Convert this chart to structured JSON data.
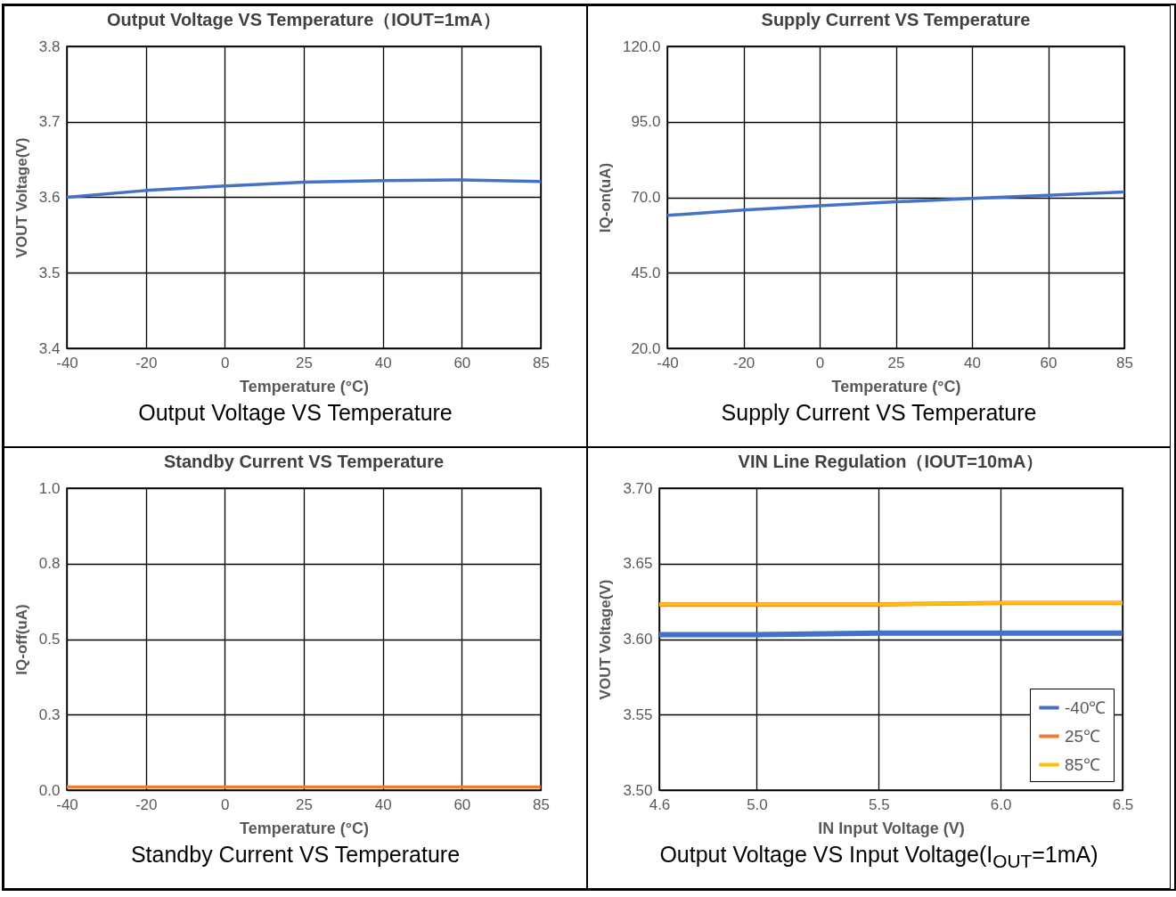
{
  "chart_data": [
    {
      "type": "line",
      "title": "Output Voltage VS Temperature（IOUT=1mA）",
      "xlabel": "Temperature (°C)",
      "ylabel": "VOUT Voltage(V)",
      "categories": [
        "-40",
        "-20",
        "0",
        "25",
        "40",
        "60",
        "85"
      ],
      "series": [
        {
          "color": "#4472c4",
          "values": [
            3.6,
            3.609,
            3.615,
            3.62,
            3.622,
            3.623,
            3.621
          ]
        }
      ],
      "ylim": [
        3.4,
        3.8
      ],
      "yticks": [
        3.4,
        3.5,
        3.6,
        3.7,
        3.8
      ],
      "grid": true,
      "annotations": [
        "Output Voltage VS Temperature"
      ]
    },
    {
      "type": "line",
      "title": "Supply Current VS Temperature",
      "xlabel": "Temperature (°C)",
      "ylabel": "IQ-on(uA)",
      "categories": [
        "-40",
        "-20",
        "0",
        "25",
        "40",
        "60",
        "85"
      ],
      "series": [
        {
          "color": "#4472c4",
          "values": [
            64,
            65.8,
            67.2,
            68.5,
            69.6,
            70.7,
            71.8
          ]
        }
      ],
      "ylim": [
        20,
        120
      ],
      "yticks": [
        {
          "value": 20,
          "label": "20.0"
        },
        {
          "value": 45,
          "label": "45.0"
        },
        {
          "value": 70,
          "label": "70.0"
        },
        {
          "value": 95,
          "label": "95.0"
        },
        {
          "value": 120,
          "label": "120.0"
        }
      ],
      "grid": true,
      "annotations": [
        "Supply Current VS Temperature"
      ]
    },
    {
      "type": "line",
      "title": "Standby Current VS Temperature",
      "xlabel": "Temperature (°C)",
      "ylabel": "IQ-off(uA)",
      "categories": [
        "-40",
        "-20",
        "0",
        "25",
        "40",
        "60",
        "85"
      ],
      "series": [
        {
          "color": "#ed7d31",
          "values": [
            0.01,
            0.01,
            0.01,
            0.01,
            0.01,
            0.01,
            0.01
          ]
        }
      ],
      "ylim": [
        0,
        1
      ],
      "yticks": [
        {
          "value": 0,
          "label": "0.0"
        },
        {
          "value": 0.25,
          "label": "0.3"
        },
        {
          "value": 0.5,
          "label": "0.5"
        },
        {
          "value": 0.75,
          "label": "0.8"
        },
        {
          "value": 1,
          "label": "1.0"
        }
      ],
      "grid": true,
      "annotations": [
        "Standby Current VS Temperature"
      ]
    },
    {
      "type": "line",
      "title": "VIN Line Regulation（IOUT=10mA）",
      "xlabel": "IN Input Voltage (V)",
      "ylabel": "VOUT Voltage(V)",
      "x": [
        4.6,
        5.0,
        5.5,
        6.0,
        6.5
      ],
      "series": [
        {
          "name": "-40℃",
          "color": "#4472c4",
          "values": [
            3.603,
            3.603,
            3.604,
            3.604,
            3.604
          ]
        },
        {
          "name": "25℃",
          "color": "#ed7d31",
          "values": [
            3.623,
            3.623,
            3.623,
            3.624,
            3.624
          ]
        },
        {
          "name": "85℃",
          "color": "#ffc000",
          "values": [
            3.623,
            3.623,
            3.623,
            3.624,
            3.624
          ]
        }
      ],
      "xlim": [
        4.6,
        6.5
      ],
      "xticks": [
        4.6,
        {
          "value": 5,
          "label": "5.0"
        },
        5.5,
        {
          "value": 6,
          "label": "6.0"
        },
        6.5
      ],
      "ylim": [
        3.5,
        3.7
      ],
      "yticks": [
        {
          "value": 3.5,
          "label": "3.50"
        },
        {
          "value": 3.55,
          "label": "3.55"
        },
        {
          "value": 3.6,
          "label": "3.60"
        },
        {
          "value": 3.65,
          "label": "3.65"
        },
        {
          "value": 3.7,
          "label": "3.70"
        }
      ],
      "grid": true,
      "legend": "bottom right",
      "annotations": [
        "Output Voltage VS Input Voltage(I$_{OUT}$=1mA)"
      ]
    }
  ]
}
